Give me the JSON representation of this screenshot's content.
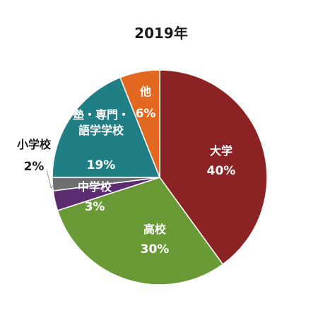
{
  "chart_data": {
    "type": "pie",
    "title": "2019年",
    "slices": [
      {
        "name": "大学",
        "label_lines": [
          "大学"
        ],
        "value": 40,
        "value_label": "40%",
        "color": "#8B2325",
        "label_color": "#ffffff"
      },
      {
        "name": "高校",
        "label_lines": [
          "高校"
        ],
        "value": 30,
        "value_label": "30%",
        "color": "#6A9A35",
        "label_color": "#ffffff"
      },
      {
        "name": "中学校",
        "label_lines": [
          "中学校"
        ],
        "value": 3,
        "value_label": "3%",
        "color": "#5B2C6F",
        "label_color": "#ffffff"
      },
      {
        "name": "小学校",
        "label_lines": [
          "小学校"
        ],
        "value": 2,
        "value_label": "2%",
        "color": "#6D6E70",
        "label_color": "#1a1a1a"
      },
      {
        "name": "塾・専門・語学学校",
        "label_lines": [
          "塾・専門・",
          "語学学校"
        ],
        "value": 19,
        "value_label": "19%",
        "color": "#1F7F85",
        "label_color": "#ffffff"
      },
      {
        "name": "他",
        "label_lines": [
          "他"
        ],
        "value": 6,
        "value_label": "6%",
        "color": "#E2691F",
        "label_color": "#ffffff"
      }
    ]
  }
}
